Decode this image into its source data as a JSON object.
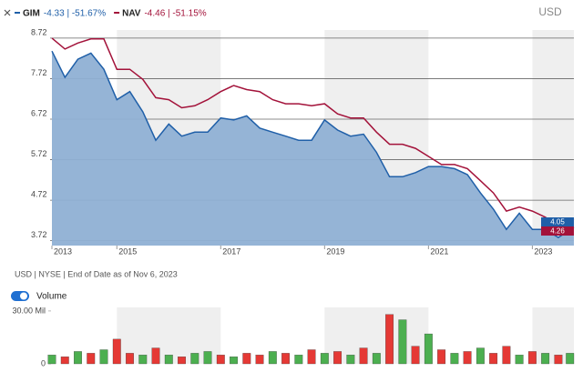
{
  "currency": "USD",
  "footer": "USD | NYSE | End of Date as of Nov 6, 2023",
  "chart_data": [
    {
      "type": "line",
      "x": [
        2013.75,
        2014.0,
        2014.25,
        2014.5,
        2014.75,
        2015.0,
        2015.25,
        2015.5,
        2015.75,
        2016.0,
        2016.25,
        2016.5,
        2016.75,
        2017.0,
        2017.25,
        2017.5,
        2017.75,
        2018.0,
        2018.25,
        2018.5,
        2018.75,
        2019.0,
        2019.25,
        2019.5,
        2019.75,
        2020.0,
        2020.25,
        2020.5,
        2020.75,
        2021.0,
        2021.25,
        2021.5,
        2021.75,
        2022.0,
        2022.25,
        2022.5,
        2022.75,
        2023.0,
        2023.25,
        2023.5,
        2023.8
      ],
      "series": [
        {
          "name": "GIM",
          "change_label": "-4.33 | -51.67%",
          "color": "#1f5fa8",
          "fill_color": "#8fb0d4",
          "values": [
            8.4,
            7.75,
            8.2,
            8.35,
            7.95,
            7.2,
            7.4,
            6.9,
            6.2,
            6.6,
            6.3,
            6.4,
            6.4,
            6.75,
            6.7,
            6.8,
            6.5,
            6.4,
            6.3,
            6.2,
            6.2,
            6.7,
            6.45,
            6.3,
            6.35,
            5.9,
            5.3,
            5.3,
            5.4,
            5.55,
            5.55,
            5.5,
            5.35,
            4.9,
            4.5,
            4.0,
            4.4,
            4.0,
            4.0,
            3.8,
            4.05
          ]
        },
        {
          "name": "NAV",
          "change_label": "-4.46 | -51.15%",
          "color": "#a3123a",
          "values": [
            8.72,
            8.45,
            8.6,
            8.7,
            8.7,
            7.95,
            7.95,
            7.7,
            7.25,
            7.2,
            7.0,
            7.05,
            7.2,
            7.4,
            7.55,
            7.45,
            7.4,
            7.2,
            7.1,
            7.1,
            7.05,
            7.1,
            6.85,
            6.75,
            6.75,
            6.4,
            6.1,
            6.1,
            6.0,
            5.8,
            5.6,
            5.6,
            5.5,
            5.2,
            4.9,
            4.45,
            4.55,
            4.45,
            4.3,
            4.1,
            4.26
          ]
        }
      ],
      "xlim": [
        2013.75,
        2023.8
      ],
      "xticks": [
        2013,
        2015,
        2017,
        2019,
        2021,
        2023
      ],
      "ylim": [
        3.6,
        8.92
      ],
      "yticks": [
        8.72,
        7.72,
        6.72,
        5.72,
        4.72,
        3.72
      ],
      "grid": true,
      "bands": true
    },
    {
      "type": "bar",
      "title": "Volume",
      "x": [
        2013.75,
        2014.0,
        2014.25,
        2014.5,
        2014.75,
        2015.0,
        2015.25,
        2015.5,
        2015.75,
        2016.0,
        2016.25,
        2016.5,
        2016.75,
        2017.0,
        2017.25,
        2017.5,
        2017.75,
        2018.0,
        2018.25,
        2018.5,
        2018.75,
        2019.0,
        2019.25,
        2019.5,
        2019.75,
        2020.0,
        2020.25,
        2020.5,
        2020.75,
        2021.0,
        2021.25,
        2021.5,
        2021.75,
        2022.0,
        2022.25,
        2022.5,
        2022.75,
        2023.0,
        2023.25,
        2023.5,
        2023.8
      ],
      "values": [
        5,
        4,
        7,
        6,
        8,
        14,
        6,
        5,
        9,
        5,
        4,
        6,
        7,
        5,
        4,
        6,
        5,
        7,
        6,
        5,
        8,
        6,
        7,
        5,
        9,
        6,
        28,
        25,
        10,
        17,
        8,
        6,
        7,
        9,
        6,
        10,
        5,
        7,
        6,
        5,
        6
      ],
      "bar_colors": [
        "#4caf50",
        "#e53935",
        "#4caf50",
        "#e53935",
        "#4caf50",
        "#e53935",
        "#e53935",
        "#4caf50",
        "#e53935",
        "#4caf50",
        "#e53935",
        "#4caf50",
        "#4caf50",
        "#e53935",
        "#4caf50",
        "#e53935",
        "#e53935",
        "#4caf50",
        "#e53935",
        "#4caf50",
        "#e53935",
        "#4caf50",
        "#e53935",
        "#4caf50",
        "#e53935",
        "#4caf50",
        "#e53935",
        "#4caf50",
        "#e53935",
        "#4caf50",
        "#e53935",
        "#4caf50",
        "#e53935",
        "#4caf50",
        "#e53935",
        "#e53935",
        "#4caf50",
        "#e53935",
        "#4caf50",
        "#e53935",
        "#4caf50"
      ],
      "xlim": [
        2013.75,
        2023.8
      ],
      "xticks": [
        2013,
        2015,
        2017,
        2019,
        2021,
        2023
      ],
      "ylim": [
        0,
        32
      ],
      "yticks": [
        {
          "value": 30,
          "label": "30.00 Mil"
        },
        0
      ],
      "bands": true
    }
  ]
}
